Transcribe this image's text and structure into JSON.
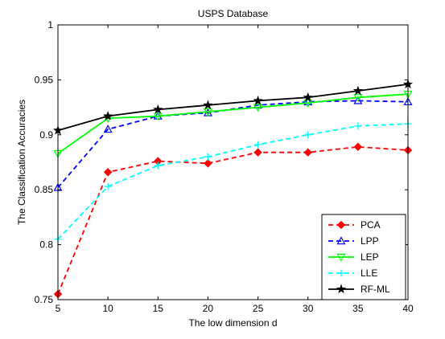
{
  "chart_data": {
    "type": "line",
    "title": "USPS Database",
    "xlabel": "The low dimension d",
    "ylabel": "The Classification Accuracies",
    "x": [
      5,
      10,
      15,
      20,
      25,
      30,
      35,
      40
    ],
    "xlim": [
      5,
      40
    ],
    "ylim": [
      0.75,
      1.0
    ],
    "x_ticks": [
      "5",
      "10",
      "15",
      "20",
      "25",
      "30",
      "35",
      "40"
    ],
    "y_ticks": [
      "0.75",
      "0.8",
      "0.85",
      "0.9",
      "0.95",
      "1"
    ],
    "y_tick_values": [
      0.75,
      0.8,
      0.85,
      0.9,
      0.95,
      1.0
    ],
    "grid": false,
    "legend_position": "bottom-right",
    "series": [
      {
        "name": "PCA",
        "color": "#ff0000",
        "dash": "dashed",
        "marker": "diamond",
        "values": [
          0.755,
          0.866,
          0.876,
          0.874,
          0.884,
          0.884,
          0.889,
          0.886
        ]
      },
      {
        "name": "LPP",
        "color": "#0000ff",
        "dash": "dashed",
        "marker": "triangle-up",
        "values": [
          0.852,
          0.905,
          0.917,
          0.92,
          0.927,
          0.93,
          0.931,
          0.93
        ]
      },
      {
        "name": "LEP",
        "color": "#00ff00",
        "dash": "solid",
        "marker": "triangle-down",
        "values": [
          0.883,
          0.915,
          0.917,
          0.921,
          0.925,
          0.929,
          0.934,
          0.937
        ]
      },
      {
        "name": "LLE",
        "color": "#00ffff",
        "dash": "dashed",
        "marker": "plus",
        "values": [
          0.805,
          0.853,
          0.872,
          0.88,
          0.891,
          0.9,
          0.908,
          0.91
        ]
      },
      {
        "name": "RF-ML",
        "color": "#000000",
        "dash": "solid",
        "marker": "star",
        "values": [
          0.904,
          0.917,
          0.923,
          0.927,
          0.931,
          0.934,
          0.94,
          0.946
        ]
      }
    ]
  }
}
